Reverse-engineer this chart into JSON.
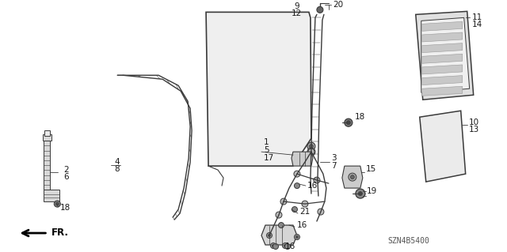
{
  "bg_color": "#ffffff",
  "diagram_code": "SZN4B5400",
  "line_color": "#3a3a3a",
  "text_color": "#1a1a1a",
  "font_size": 7.0,
  "fig_w": 6.4,
  "fig_h": 3.19,
  "dpi": 100
}
